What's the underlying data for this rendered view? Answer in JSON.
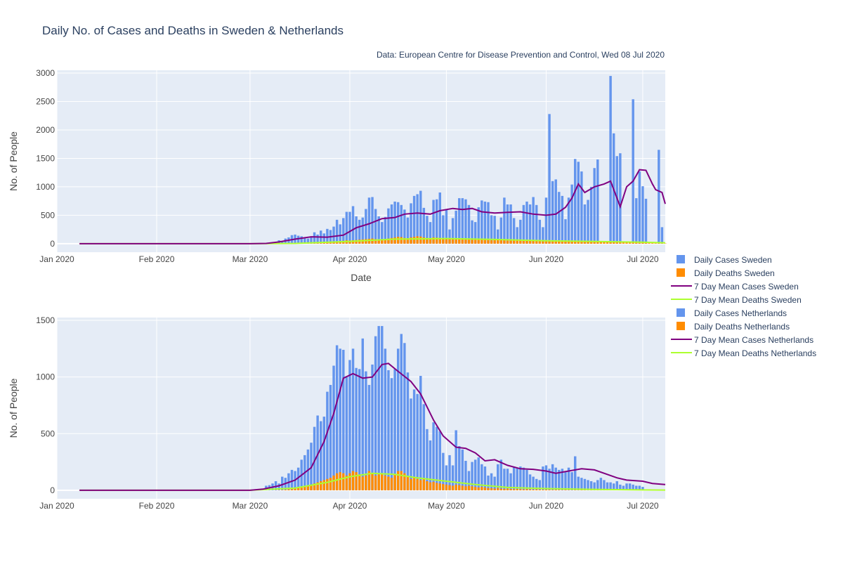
{
  "title": "Daily No. of Cases and Deaths in Sweden & Netherlands",
  "source_note": "Data: European Centre for Disease Prevention and Control, Wed 08 Jul 2020",
  "colors": {
    "cases": "#6495ED",
    "deaths": "#FF8C00",
    "mean_cases": "#800080",
    "mean_deaths": "#ADFF2F",
    "plot_bg": "#E5ECF6",
    "grid": "#FFFFFF"
  },
  "legend": [
    {
      "label": "Daily Cases Sweden",
      "kind": "bar",
      "color": "#6495ED"
    },
    {
      "label": "Daily Deaths Sweden",
      "kind": "bar",
      "color": "#FF8C00"
    },
    {
      "label": "7 Day Mean Cases Sweden",
      "kind": "line",
      "color": "#800080"
    },
    {
      "label": "7 Day Mean Deaths Sweden",
      "kind": "line",
      "color": "#ADFF2F"
    },
    {
      "label": "Daily Cases Netherlands",
      "kind": "bar",
      "color": "#6495ED"
    },
    {
      "label": "Daily Deaths Netherlands",
      "kind": "bar",
      "color": "#FF8C00"
    },
    {
      "label": "7 Day Mean Cases Netherlands",
      "kind": "line",
      "color": "#800080"
    },
    {
      "label": "7 Day Mean Deaths Netherlands",
      "kind": "line",
      "color": "#ADFF2F"
    }
  ],
  "chart_data": [
    {
      "type": "bar",
      "country": "Sweden",
      "xlabel": "Date",
      "ylabel": "No. of People",
      "xlim": [
        "2020-01-01",
        "2020-07-08"
      ],
      "ylim": [
        -150,
        3050
      ],
      "yticks": [
        0,
        500,
        1000,
        1500,
        2000,
        2500,
        3000
      ],
      "xticks": [
        {
          "date": "2020-01-01",
          "label": "Jan 2020"
        },
        {
          "date": "2020-02-01",
          "label": "Feb 2020"
        },
        {
          "date": "2020-03-01",
          "label": "Mar 2020"
        },
        {
          "date": "2020-04-01",
          "label": "Apr 2020"
        },
        {
          "date": "2020-05-01",
          "label": "May 2020"
        },
        {
          "date": "2020-06-01",
          "label": "Jun 2020"
        },
        {
          "date": "2020-07-01",
          "label": "Jul 2020"
        }
      ],
      "bar_start": "2020-03-06",
      "daily_cases": [
        5,
        10,
        20,
        35,
        60,
        40,
        90,
        110,
        150,
        160,
        140,
        130,
        110,
        90,
        120,
        200,
        160,
        230,
        180,
        260,
        240,
        300,
        420,
        340,
        450,
        560,
        560,
        660,
        480,
        420,
        460,
        610,
        810,
        820,
        610,
        480,
        380,
        470,
        620,
        690,
        740,
        730,
        680,
        600,
        460,
        710,
        840,
        870,
        930,
        630,
        490,
        380,
        770,
        780,
        900,
        500,
        610,
        250,
        450,
        580,
        800,
        800,
        780,
        680,
        410,
        380,
        640,
        760,
        740,
        730,
        500,
        490,
        250,
        460,
        810,
        690,
        690,
        450,
        290,
        420,
        680,
        740,
        690,
        820,
        680,
        420,
        290,
        810,
        2280,
        1100,
        1130,
        910,
        840,
        430,
        810,
        1040,
        1490,
        1440,
        1270,
        690,
        770,
        1000,
        1330,
        1480,
        0,
        0,
        0,
        2950,
        1940,
        1540,
        1590,
        0,
        0,
        0,
        2540,
        800,
        1270,
        1010,
        790,
        0,
        0,
        0,
        1650,
        290
      ],
      "daily_deaths": [
        0,
        0,
        0,
        0,
        0,
        0,
        1,
        2,
        3,
        5,
        7,
        10,
        5,
        8,
        10,
        12,
        15,
        18,
        20,
        25,
        30,
        35,
        40,
        45,
        50,
        60,
        55,
        60,
        65,
        70,
        75,
        80,
        85,
        90,
        80,
        75,
        70,
        65,
        90,
        100,
        110,
        120,
        115,
        100,
        95,
        110,
        120,
        130,
        125,
        110,
        100,
        95,
        110,
        105,
        100,
        95,
        90,
        85,
        80,
        85,
        90,
        85,
        80,
        75,
        70,
        75,
        80,
        75,
        70,
        65,
        60,
        65,
        70,
        65,
        60,
        55,
        60,
        65,
        60,
        55,
        50,
        55,
        60,
        55,
        50,
        45,
        40,
        45,
        50,
        45,
        40,
        45,
        50,
        55,
        45,
        40,
        35,
        40,
        45,
        40,
        35,
        40,
        45,
        40,
        35,
        30,
        35,
        30,
        25,
        30,
        35,
        30,
        25,
        20,
        25,
        20,
        15,
        20,
        15,
        10,
        15,
        10,
        15,
        10,
        5
      ],
      "mean_cases": [
        [
          "2020-01-08",
          0
        ],
        [
          "2020-02-01",
          0
        ],
        [
          "2020-03-01",
          0
        ],
        [
          "2020-03-06",
          5
        ],
        [
          "2020-03-10",
          30
        ],
        [
          "2020-03-15",
          80
        ],
        [
          "2020-03-20",
          120
        ],
        [
          "2020-03-25",
          115
        ],
        [
          "2020-03-30",
          150
        ],
        [
          "2020-04-03",
          280
        ],
        [
          "2020-04-07",
          350
        ],
        [
          "2020-04-11",
          440
        ],
        [
          "2020-04-15",
          460
        ],
        [
          "2020-04-18",
          520
        ],
        [
          "2020-04-22",
          540
        ],
        [
          "2020-04-26",
          520
        ],
        [
          "2020-04-29",
          580
        ],
        [
          "2020-05-03",
          620
        ],
        [
          "2020-05-06",
          600
        ],
        [
          "2020-05-09",
          620
        ],
        [
          "2020-05-12",
          560
        ],
        [
          "2020-05-16",
          540
        ],
        [
          "2020-05-20",
          550
        ],
        [
          "2020-05-24",
          560
        ],
        [
          "2020-05-28",
          520
        ],
        [
          "2020-06-01",
          500
        ],
        [
          "2020-06-04",
          520
        ],
        [
          "2020-06-07",
          640
        ],
        [
          "2020-06-09",
          800
        ],
        [
          "2020-06-11",
          1050
        ],
        [
          "2020-06-13",
          900
        ],
        [
          "2020-06-16",
          1000
        ],
        [
          "2020-06-19",
          1050
        ],
        [
          "2020-06-21",
          1100
        ],
        [
          "2020-06-23",
          800
        ],
        [
          "2020-06-24",
          650
        ],
        [
          "2020-06-26",
          1000
        ],
        [
          "2020-06-28",
          1100
        ],
        [
          "2020-06-30",
          1300
        ],
        [
          "2020-07-02",
          1290
        ],
        [
          "2020-07-04",
          1050
        ],
        [
          "2020-07-05",
          950
        ],
        [
          "2020-07-07",
          900
        ],
        [
          "2020-07-08",
          700
        ]
      ],
      "mean_deaths": [
        [
          "2020-01-08",
          0
        ],
        [
          "2020-03-01",
          0
        ],
        [
          "2020-03-15",
          5
        ],
        [
          "2020-04-01",
          40
        ],
        [
          "2020-04-15",
          80
        ],
        [
          "2020-05-01",
          90
        ],
        [
          "2020-05-15",
          75
        ],
        [
          "2020-06-01",
          50
        ],
        [
          "2020-06-15",
          40
        ],
        [
          "2020-07-01",
          25
        ],
        [
          "2020-07-08",
          15
        ]
      ]
    },
    {
      "type": "bar",
      "country": "Netherlands",
      "xlabel": "",
      "ylabel": "No. of People",
      "xlim": [
        "2020-01-01",
        "2020-07-08"
      ],
      "ylim": [
        -75,
        1525
      ],
      "yticks": [
        0,
        500,
        1000,
        1500
      ],
      "xticks": [
        {
          "date": "2020-01-01",
          "label": "Jan 2020"
        },
        {
          "date": "2020-02-01",
          "label": "Feb 2020"
        },
        {
          "date": "2020-03-01",
          "label": "Mar 2020"
        },
        {
          "date": "2020-04-01",
          "label": "Apr 2020"
        },
        {
          "date": "2020-05-01",
          "label": "May 2020"
        },
        {
          "date": "2020-06-01",
          "label": "Jun 2020"
        },
        {
          "date": "2020-07-01",
          "label": "Jul 2020"
        }
      ],
      "bar_start": "2020-03-06",
      "daily_cases": [
        40,
        45,
        60,
        80,
        60,
        120,
        110,
        150,
        180,
        170,
        200,
        270,
        310,
        360,
        420,
        560,
        660,
        610,
        650,
        870,
        930,
        1100,
        1280,
        1250,
        1240,
        1000,
        1150,
        1250,
        1080,
        1070,
        1340,
        1050,
        930,
        1110,
        1360,
        1450,
        1450,
        1250,
        1060,
        990,
        1070,
        1250,
        1380,
        1300,
        1040,
        810,
        890,
        850,
        1010,
        760,
        540,
        440,
        600,
        560,
        520,
        330,
        220,
        310,
        220,
        530,
        390,
        360,
        260,
        170,
        250,
        270,
        290,
        230,
        210,
        130,
        150,
        120,
        230,
        270,
        190,
        190,
        150,
        210,
        200,
        210,
        200,
        180,
        140,
        120,
        100,
        90,
        210,
        220,
        190,
        230,
        200,
        180,
        190,
        170,
        200,
        160,
        300,
        120,
        110,
        100,
        90,
        80,
        70,
        90,
        110,
        90,
        70,
        70,
        60,
        80,
        50,
        40,
        60,
        60,
        50,
        40,
        40,
        30
      ],
      "daily_deaths": [
        0,
        0,
        0,
        1,
        2,
        3,
        5,
        8,
        10,
        15,
        20,
        25,
        30,
        40,
        50,
        60,
        70,
        80,
        90,
        100,
        110,
        130,
        150,
        160,
        150,
        130,
        150,
        170,
        160,
        140,
        120,
        130,
        170,
        150,
        130,
        140,
        150,
        130,
        120,
        110,
        140,
        170,
        170,
        150,
        120,
        100,
        110,
        100,
        90,
        100,
        80,
        70,
        75,
        65,
        60,
        55,
        50,
        45,
        40,
        50,
        45,
        40,
        35,
        40,
        35,
        30,
        25,
        30,
        25,
        20,
        18,
        15,
        20,
        15,
        12,
        15,
        12,
        10,
        12,
        10,
        8,
        10,
        8,
        6,
        8,
        6,
        5,
        6,
        5,
        4,
        5,
        4,
        3,
        4,
        3,
        2,
        3,
        2,
        3,
        2,
        1,
        2,
        1,
        2,
        1,
        1,
        2,
        1,
        1,
        1,
        1,
        1,
        0,
        1,
        0,
        1,
        0,
        0,
        0,
        0,
        0,
        0,
        0
      ],
      "mean_cases": [
        [
          "2020-01-08",
          0
        ],
        [
          "2020-03-01",
          0
        ],
        [
          "2020-03-05",
          10
        ],
        [
          "2020-03-10",
          40
        ],
        [
          "2020-03-15",
          90
        ],
        [
          "2020-03-20",
          200
        ],
        [
          "2020-03-24",
          430
        ],
        [
          "2020-03-27",
          680
        ],
        [
          "2020-03-30",
          990
        ],
        [
          "2020-04-02",
          1030
        ],
        [
          "2020-04-05",
          990
        ],
        [
          "2020-04-08",
          1000
        ],
        [
          "2020-04-11",
          1110
        ],
        [
          "2020-04-13",
          1120
        ],
        [
          "2020-04-16",
          1050
        ],
        [
          "2020-04-20",
          960
        ],
        [
          "2020-04-23",
          850
        ],
        [
          "2020-04-27",
          620
        ],
        [
          "2020-04-30",
          480
        ],
        [
          "2020-05-04",
          380
        ],
        [
          "2020-05-07",
          370
        ],
        [
          "2020-05-10",
          330
        ],
        [
          "2020-05-13",
          260
        ],
        [
          "2020-05-16",
          270
        ],
        [
          "2020-05-20",
          220
        ],
        [
          "2020-05-24",
          190
        ],
        [
          "2020-05-28",
          185
        ],
        [
          "2020-06-01",
          170
        ],
        [
          "2020-06-04",
          150
        ],
        [
          "2020-06-08",
          170
        ],
        [
          "2020-06-12",
          190
        ],
        [
          "2020-06-16",
          180
        ],
        [
          "2020-06-20",
          140
        ],
        [
          "2020-06-23",
          110
        ],
        [
          "2020-06-26",
          90
        ],
        [
          "2020-07-01",
          80
        ],
        [
          "2020-07-04",
          60
        ],
        [
          "2020-07-08",
          50
        ]
      ],
      "mean_deaths": [
        [
          "2020-01-08",
          0
        ],
        [
          "2020-03-01",
          0
        ],
        [
          "2020-03-15",
          20
        ],
        [
          "2020-03-25",
          70
        ],
        [
          "2020-04-01",
          120
        ],
        [
          "2020-04-08",
          150
        ],
        [
          "2020-04-15",
          140
        ],
        [
          "2020-04-22",
          110
        ],
        [
          "2020-05-01",
          80
        ],
        [
          "2020-05-10",
          50
        ],
        [
          "2020-05-20",
          25
        ],
        [
          "2020-06-01",
          15
        ],
        [
          "2020-06-15",
          8
        ],
        [
          "2020-07-01",
          3
        ],
        [
          "2020-07-08",
          2
        ]
      ]
    }
  ]
}
